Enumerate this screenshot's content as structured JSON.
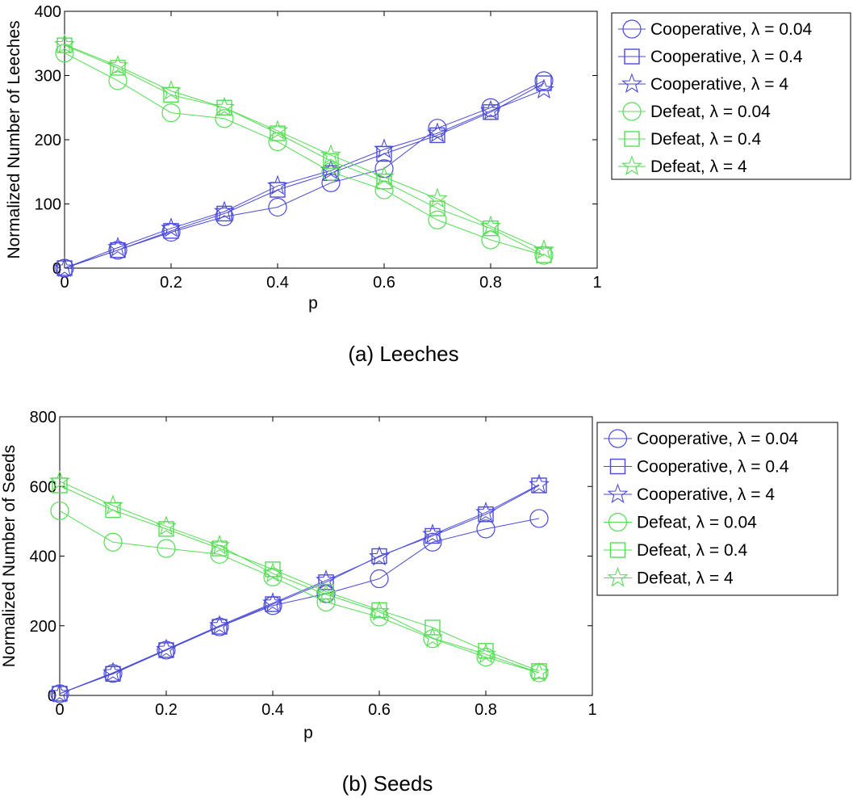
{
  "figure": {
    "panels": [
      "a",
      "b"
    ]
  },
  "chart_data": [
    {
      "id": "a",
      "type": "line",
      "caption": "(a)  Leeches",
      "title": "",
      "xlabel": "p",
      "ylabel": "Normalized Number of Leeches",
      "xlim": [
        0,
        1
      ],
      "ylim": [
        0,
        400
      ],
      "xticks": [
        0,
        0.2,
        0.4,
        0.6,
        0.8,
        1
      ],
      "yticks": [
        0,
        100,
        200,
        300,
        400
      ],
      "xtick_labels": [
        "0",
        "0.2",
        "0.4",
        "0.6",
        "0.8",
        "1"
      ],
      "ytick_labels": [
        "0",
        "100",
        "200",
        "300",
        "400"
      ],
      "grid": false,
      "legend_position": "outside-right",
      "x": [
        0,
        0.1,
        0.2,
        0.3,
        0.4,
        0.5,
        0.6,
        0.7,
        0.8,
        0.9
      ],
      "series": [
        {
          "name": "Cooperative, λ = 0.04",
          "color": "#4a4adb",
          "marker": "circle",
          "values": [
            0,
            28,
            56,
            80,
            95,
            133,
            155,
            218,
            250,
            292
          ]
        },
        {
          "name": "Cooperative, λ = 0.4",
          "color": "#4a4adb",
          "marker": "square",
          "values": [
            0,
            28,
            58,
            85,
            122,
            148,
            178,
            207,
            243,
            288
          ]
        },
        {
          "name": "Cooperative, λ = 4",
          "color": "#4a4adb",
          "marker": "star",
          "values": [
            0,
            32,
            62,
            88,
            128,
            152,
            185,
            210,
            245,
            278
          ]
        },
        {
          "name": "Defeat,  λ = 0.04",
          "color": "#55dd55",
          "marker": "circle",
          "values": [
            335,
            292,
            242,
            233,
            197,
            150,
            122,
            75,
            44,
            20
          ]
        },
        {
          "name": "Defeat,  λ = 0.4",
          "color": "#55dd55",
          "marker": "square",
          "values": [
            347,
            312,
            270,
            250,
            210,
            167,
            135,
            93,
            62,
            20
          ]
        },
        {
          "name": "Defeat,  λ = 4",
          "color": "#55dd55",
          "marker": "star",
          "values": [
            348,
            315,
            276,
            250,
            214,
            176,
            142,
            108,
            65,
            28
          ]
        }
      ]
    },
    {
      "id": "b",
      "type": "line",
      "caption": "(b)  Seeds",
      "title": "",
      "xlabel": "p",
      "ylabel": "Normalized Number of Seeds",
      "xlim": [
        0,
        1
      ],
      "ylim": [
        0,
        800
      ],
      "xticks": [
        0,
        0.2,
        0.4,
        0.6,
        0.8,
        1
      ],
      "yticks": [
        0,
        200,
        400,
        600,
        800
      ],
      "xtick_labels": [
        "0",
        "0.2",
        "0.4",
        "0.6",
        "0.8",
        "1"
      ],
      "ytick_labels": [
        "0",
        "200",
        "400",
        "600",
        "800"
      ],
      "grid": false,
      "legend_position": "outside-right",
      "x": [
        0,
        0.1,
        0.2,
        0.3,
        0.4,
        0.5,
        0.6,
        0.7,
        0.8,
        0.9
      ],
      "series": [
        {
          "name": "Cooperative, λ = 0.04",
          "color": "#4a4adb",
          "marker": "circle",
          "values": [
            5,
            63,
            130,
            197,
            258,
            292,
            335,
            440,
            478,
            508
          ]
        },
        {
          "name": "Cooperative, λ = 0.4",
          "color": "#4a4adb",
          "marker": "square",
          "values": [
            5,
            62,
            130,
            197,
            262,
            325,
            400,
            458,
            520,
            603
          ]
        },
        {
          "name": "Cooperative, λ = 4",
          "color": "#4a4adb",
          "marker": "star",
          "values": [
            5,
            65,
            132,
            200,
            265,
            330,
            398,
            462,
            525,
            605
          ]
        },
        {
          "name": "Defeat, λ = 0.04",
          "color": "#55dd55",
          "marker": "circle",
          "values": [
            530,
            440,
            422,
            405,
            340,
            268,
            225,
            163,
            110,
            65
          ]
        },
        {
          "name": "Defeat, λ = 0.4",
          "color": "#55dd55",
          "marker": "square",
          "values": [
            603,
            532,
            478,
            422,
            362,
            298,
            245,
            195,
            128,
            70
          ]
        },
        {
          "name": "Defeat, λ = 4",
          "color": "#55dd55",
          "marker": "star",
          "values": [
            615,
            545,
            485,
            430,
            350,
            290,
            240,
            165,
            118,
            65
          ]
        }
      ]
    }
  ]
}
